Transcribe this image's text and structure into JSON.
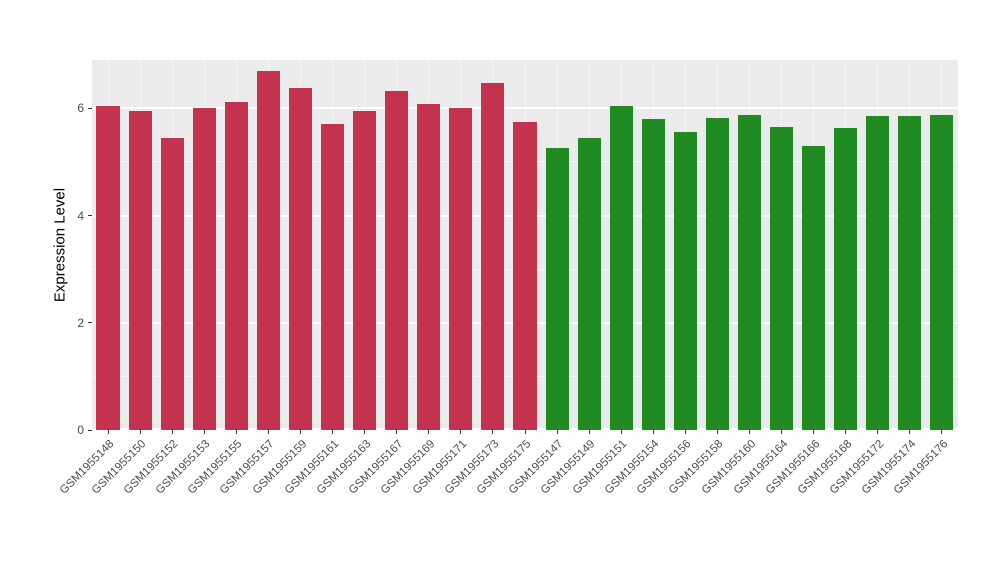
{
  "chart_data": {
    "type": "bar",
    "title": "",
    "xlabel": "",
    "ylabel": "Expression Level",
    "categories": [
      "GSM1955148",
      "GSM1955150",
      "GSM1955152",
      "GSM1955153",
      "GSM1955155",
      "GSM1955157",
      "GSM1955159",
      "GSM1955161",
      "GSM1955163",
      "GSM1955167",
      "GSM1955169",
      "GSM1955171",
      "GSM1955173",
      "GSM1955175",
      "GSM1955147",
      "GSM1955149",
      "GSM1955151",
      "GSM1955154",
      "GSM1955156",
      "GSM1955158",
      "GSM1955160",
      "GSM1955164",
      "GSM1955166",
      "GSM1955168",
      "GSM1955172",
      "GSM1955174",
      "GSM1955176"
    ],
    "values": [
      6.05,
      5.95,
      5.45,
      6.0,
      6.12,
      6.7,
      6.38,
      5.7,
      5.95,
      6.33,
      6.08,
      6.0,
      6.48,
      5.75,
      5.25,
      5.45,
      6.05,
      5.8,
      5.55,
      5.82,
      5.87,
      5.65,
      5.3,
      5.63,
      5.85,
      5.85,
      5.87
    ],
    "bar_groups": [
      "group1",
      "group1",
      "group1",
      "group1",
      "group1",
      "group1",
      "group1",
      "group1",
      "group1",
      "group1",
      "group1",
      "group1",
      "group1",
      "group1",
      "group2",
      "group2",
      "group2",
      "group2",
      "group2",
      "group2",
      "group2",
      "group2",
      "group2",
      "group2",
      "group2",
      "group2",
      "group2"
    ],
    "group_colors": {
      "group1": "#C3324E",
      "group2": "#1F8B22"
    },
    "ylim": [
      0,
      6.9
    ],
    "yticks": [
      0,
      2,
      4,
      6
    ],
    "minor_yticks": [
      1,
      3,
      5
    ],
    "panel_bg": "#EBEBEB",
    "grid_color": "#FFFFFF",
    "grid": "on",
    "legend": "none"
  }
}
